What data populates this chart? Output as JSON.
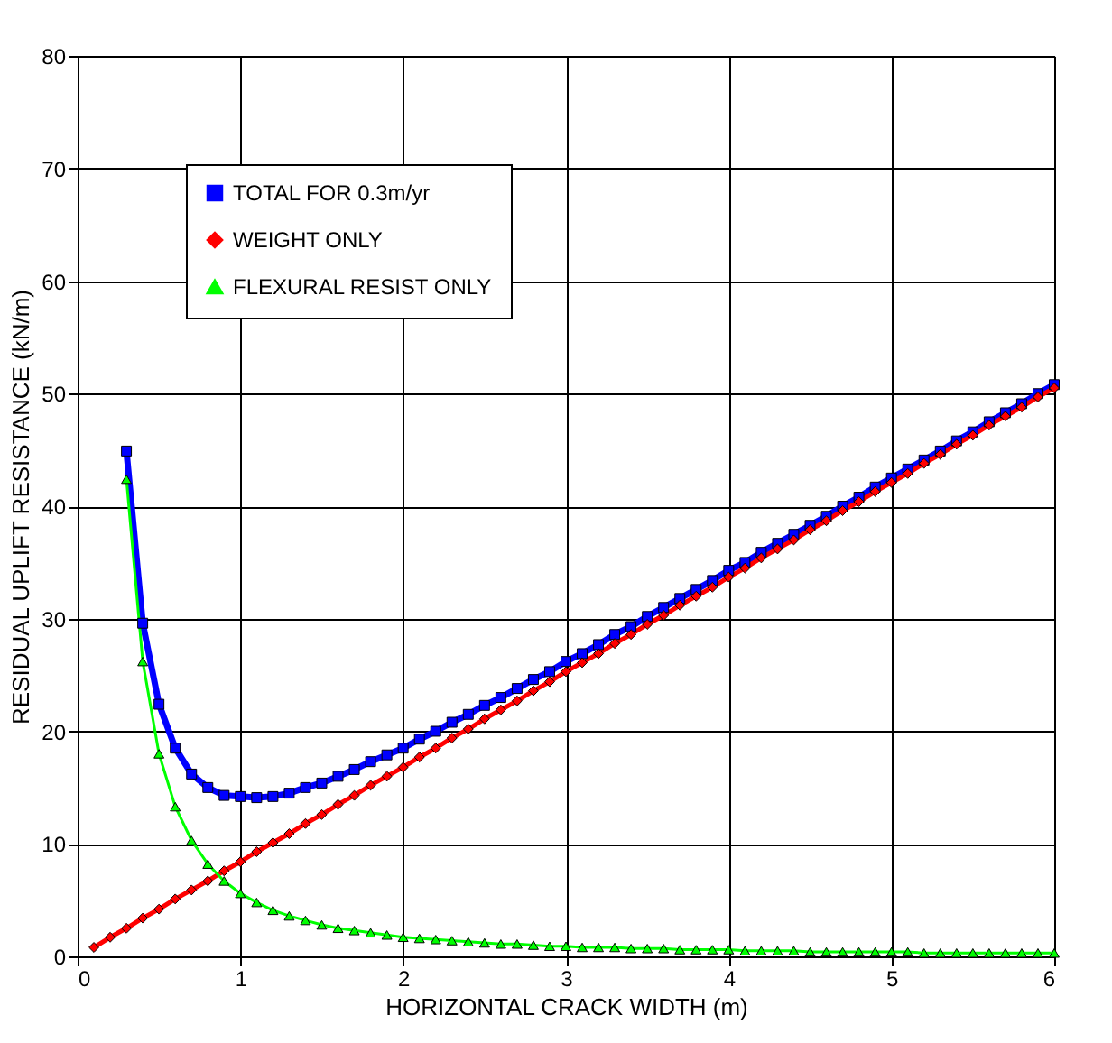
{
  "chart_data": {
    "type": "line",
    "xlabel": "HORIZONTAL CRACK WIDTH (m)",
    "ylabel": "RESIDUAL UPLIFT RESISTANCE  (kN/m)",
    "x": [
      0.1,
      0.2,
      0.3,
      0.4,
      0.5,
      0.6,
      0.7,
      0.8,
      0.9,
      1.0,
      1.1,
      1.2,
      1.3,
      1.4,
      1.5,
      1.6,
      1.7,
      1.8,
      1.9,
      2.0,
      2.1,
      2.2,
      2.3,
      2.4,
      2.5,
      2.6,
      2.7,
      2.8,
      2.9,
      3.0,
      3.1,
      3.2,
      3.3,
      3.4,
      3.5,
      3.6,
      3.7,
      3.8,
      3.9,
      4.0,
      4.1,
      4.2,
      4.3,
      4.4,
      4.5,
      4.6,
      4.7,
      4.8,
      4.9,
      5.0,
      5.1,
      5.2,
      5.3,
      5.4,
      5.5,
      5.6,
      5.7,
      5.8,
      5.9,
      6.0
    ],
    "series": [
      {
        "name": "TOTAL FOR 0.3m/yr",
        "color": "#0000ff",
        "marker": "square",
        "values": [
          null,
          null,
          44.9,
          29.6,
          22.4,
          18.5,
          16.2,
          15.0,
          14.3,
          14.2,
          14.1,
          14.2,
          14.5,
          15.0,
          15.4,
          16.0,
          16.6,
          17.3,
          17.9,
          18.5,
          19.3,
          20.0,
          20.8,
          21.5,
          22.3,
          23.0,
          23.8,
          24.6,
          25.3,
          26.2,
          26.9,
          27.7,
          28.6,
          29.3,
          30.2,
          31.0,
          31.8,
          32.6,
          33.4,
          34.3,
          35.0,
          35.9,
          36.7,
          37.5,
          38.3,
          39.1,
          40.0,
          40.8,
          41.7,
          42.5,
          43.3,
          44.1,
          44.9,
          45.8,
          46.6,
          47.5,
          48.3,
          49.1,
          50.0,
          50.8
        ]
      },
      {
        "name": "WEIGHT ONLY",
        "color": "#ff0000",
        "marker": "diamond",
        "values": [
          0.8,
          1.7,
          2.5,
          3.4,
          4.2,
          5.1,
          5.9,
          6.7,
          7.6,
          8.4,
          9.3,
          10.1,
          10.9,
          11.8,
          12.6,
          13.5,
          14.3,
          15.2,
          16.0,
          16.8,
          17.7,
          18.5,
          19.4,
          20.2,
          21.1,
          21.9,
          22.7,
          23.6,
          24.4,
          25.3,
          26.1,
          26.9,
          27.8,
          28.6,
          29.5,
          30.3,
          31.2,
          32.0,
          32.8,
          33.7,
          34.5,
          35.4,
          36.2,
          37.0,
          37.9,
          38.7,
          39.6,
          40.4,
          41.3,
          42.1,
          42.9,
          43.8,
          44.6,
          45.5,
          46.3,
          47.2,
          48.0,
          48.8,
          49.7,
          50.5
        ]
      },
      {
        "name": "FLEXURAL RESIST ONLY",
        "color": "#00ff00",
        "marker": "triangle",
        "values": [
          null,
          null,
          42.4,
          26.2,
          18.0,
          13.3,
          10.3,
          8.2,
          6.7,
          5.6,
          4.8,
          4.1,
          3.6,
          3.2,
          2.8,
          2.5,
          2.3,
          2.1,
          1.9,
          1.7,
          1.6,
          1.5,
          1.4,
          1.3,
          1.2,
          1.1,
          1.1,
          1.0,
          0.9,
          0.9,
          0.8,
          0.8,
          0.8,
          0.7,
          0.7,
          0.7,
          0.6,
          0.6,
          0.6,
          0.6,
          0.5,
          0.5,
          0.5,
          0.5,
          0.4,
          0.4,
          0.4,
          0.4,
          0.4,
          0.4,
          0.4,
          0.3,
          0.3,
          0.3,
          0.3,
          0.3,
          0.3,
          0.3,
          0.3,
          0.3
        ]
      }
    ],
    "xlim": [
      0,
      6
    ],
    "xticks": [
      0,
      1,
      2,
      3,
      4,
      5,
      6
    ],
    "ylim": [
      0,
      80
    ],
    "yticks": [
      0,
      10,
      20,
      30,
      40,
      50,
      60,
      70,
      80
    ],
    "grid": true,
    "legend": "top left"
  }
}
